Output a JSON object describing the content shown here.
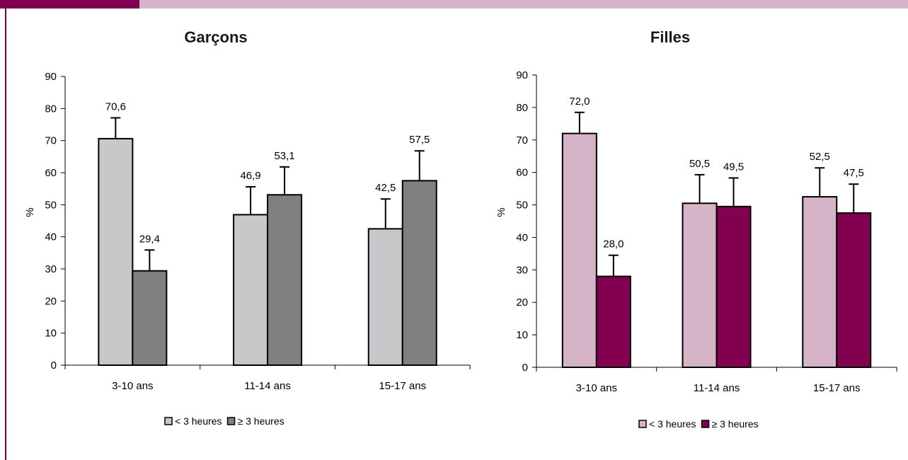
{
  "colors": {
    "accent": "#800052",
    "header_light": "#d7b4c8",
    "boys_low": "#c8c8ca",
    "boys_high": "#808083",
    "girls_low": "#d6b4c8",
    "girls_high": "#82004f"
  },
  "chart_data": [
    {
      "type": "bar",
      "title": "Garçons",
      "ylabel": "%",
      "xlabel": "",
      "categories": [
        "3-10 ans",
        "11-14 ans",
        "15-17 ans"
      ],
      "ylim": [
        0,
        90
      ],
      "yticks": [
        0,
        10,
        20,
        30,
        40,
        50,
        60,
        70,
        80,
        90
      ],
      "series": [
        {
          "name": "< 3 heures",
          "values": [
            70.6,
            46.9,
            42.5
          ],
          "labels": [
            "70,6",
            "46,9",
            "42,5"
          ],
          "error_plus": [
            6.5,
            8.7,
            9.3
          ]
        },
        {
          "name": "≥ 3 heures",
          "values": [
            29.4,
            53.1,
            57.5
          ],
          "labels": [
            "29,4",
            "53,1",
            "57,5"
          ],
          "error_plus": [
            6.5,
            8.7,
            9.3
          ]
        }
      ],
      "legend_position": "bottom",
      "grid": false
    },
    {
      "type": "bar",
      "title": "Filles",
      "ylabel": "%",
      "xlabel": "",
      "categories": [
        "3-10 ans",
        "11-14 ans",
        "15-17 ans"
      ],
      "ylim": [
        0,
        90
      ],
      "yticks": [
        0,
        10,
        20,
        30,
        40,
        50,
        60,
        70,
        80,
        90
      ],
      "series": [
        {
          "name": "< 3 heures",
          "values": [
            72.0,
            50.5,
            52.5
          ],
          "labels": [
            "72,0",
            "50,5",
            "52,5"
          ],
          "error_plus": [
            6.5,
            8.8,
            8.9
          ]
        },
        {
          "name": "≥ 3 heures",
          "values": [
            28.0,
            49.5,
            47.5
          ],
          "labels": [
            "28,0",
            "49,5",
            "47,5"
          ],
          "error_plus": [
            6.5,
            8.8,
            8.9
          ]
        }
      ],
      "legend_position": "bottom",
      "grid": false
    }
  ]
}
